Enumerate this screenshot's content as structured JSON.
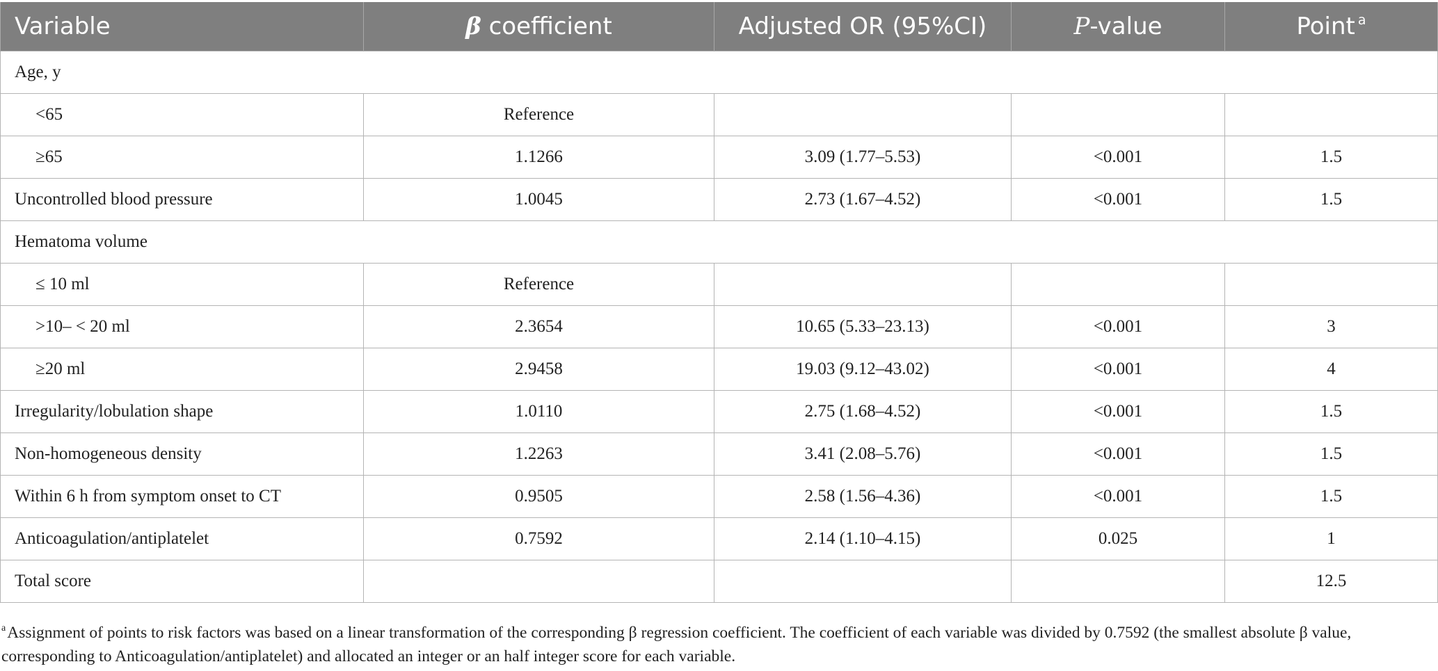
{
  "header": {
    "variable": "Variable",
    "beta_symbol": "β",
    "beta_text": " coefficient",
    "adjusted_or": "Adjusted OR (95%CI)",
    "p_symbol": "P",
    "p_text": "-value",
    "point": "Point",
    "point_sup": "a"
  },
  "rows": [
    {
      "type": "section",
      "variable": "Age, y"
    },
    {
      "type": "indent",
      "variable": "<65",
      "beta": "Reference",
      "or": "",
      "p": "",
      "point": ""
    },
    {
      "type": "indent",
      "variable": "≥65",
      "beta": "1.1266",
      "or": "3.09 (1.77–5.53)",
      "p": "<0.001",
      "point": "1.5"
    },
    {
      "type": "row",
      "variable": "Uncontrolled blood pressure",
      "beta": "1.0045",
      "or": "2.73 (1.67–4.52)",
      "p": "<0.001",
      "point": "1.5"
    },
    {
      "type": "section",
      "variable": "Hematoma volume"
    },
    {
      "type": "indent",
      "variable": "≤ 10 ml",
      "beta": "Reference",
      "or": "",
      "p": "",
      "point": ""
    },
    {
      "type": "indent",
      "variable": ">10– < 20 ml",
      "beta": "2.3654",
      "or": "10.65 (5.33–23.13)",
      "p": "<0.001",
      "point": "3"
    },
    {
      "type": "indent",
      "variable": "≥20 ml",
      "beta": "2.9458",
      "or": "19.03 (9.12–43.02)",
      "p": "<0.001",
      "point": "4"
    },
    {
      "type": "row",
      "variable": "Irregularity/lobulation shape",
      "beta": "1.0110",
      "or": "2.75 (1.68–4.52)",
      "p": "<0.001",
      "point": "1.5"
    },
    {
      "type": "row",
      "variable": "Non-homogeneous density",
      "beta": "1.2263",
      "or": "3.41 (2.08–5.76)",
      "p": "<0.001",
      "point": "1.5"
    },
    {
      "type": "row",
      "variable": "Within 6 h from symptom onset to CT",
      "beta": "0.9505",
      "or": "2.58 (1.56–4.36)",
      "p": "<0.001",
      "point": "1.5"
    },
    {
      "type": "row",
      "variable": "Anticoagulation/antiplatelet",
      "beta": "0.7592",
      "or": "2.14 (1.10–4.15)",
      "p": "0.025",
      "point": "1"
    },
    {
      "type": "row",
      "variable": "Total score",
      "beta": "",
      "or": "",
      "p": "",
      "point": "12.5"
    }
  ],
  "footnote": {
    "marker": "a",
    "text": "Assignment of points to risk factors was based on a linear transformation of the corresponding β regression coefficient. The coefficient of each variable was divided by 0.7592 (the smallest absolute β value, corresponding to Anticoagulation/antiplatelet) and allocated an integer or an half integer score for each variable."
  }
}
